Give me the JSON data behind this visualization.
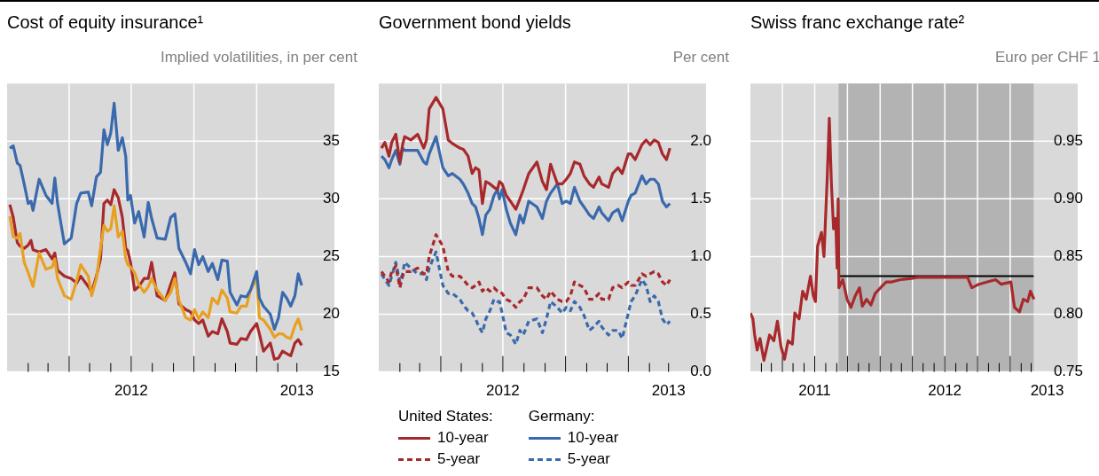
{
  "chart_data": [
    {
      "type": "line",
      "title": "Cost of equity insurance¹",
      "subtitle": "Implied volatilities, in per cent",
      "marker": "none",
      "grid": true,
      "xlim": [
        "2012-01-01",
        "2013-04-25"
      ],
      "xticks": [
        {
          "value": "2012-02-01",
          "label": null
        },
        {
          "value": "2012-03-01",
          "label": null
        },
        {
          "value": "2012-04-01",
          "label": null
        },
        {
          "value": "2012-05-01",
          "label": null
        },
        {
          "value": "2012-06-01",
          "label": null
        },
        {
          "value": "2012-07-01",
          "label": "2012"
        },
        {
          "value": "2012-08-01",
          "label": null
        },
        {
          "value": "2012-09-01",
          "label": null
        },
        {
          "value": "2012-10-01",
          "label": null
        },
        {
          "value": "2012-11-01",
          "label": null
        },
        {
          "value": "2012-12-01",
          "label": null
        },
        {
          "value": "2013-01-01",
          "label": null
        },
        {
          "value": "2013-02-01",
          "label": null
        },
        {
          "value": "2013-03-01",
          "label": "2013"
        }
      ],
      "ylim": [
        15,
        40
      ],
      "yticks": [
        15,
        20,
        25,
        30,
        35
      ],
      "x": [
        "2012-01-05",
        "2012-01-10",
        "2012-01-16",
        "2012-01-20",
        "2012-01-26",
        "2012-02-01",
        "2012-02-05",
        "2012-02-08",
        "2012-02-17",
        "2012-02-27",
        "2012-03-07",
        "2012-03-11",
        "2012-03-15",
        "2012-03-25",
        "2012-04-04",
        "2012-04-12",
        "2012-04-18",
        "2012-04-29",
        "2012-05-04",
        "2012-05-11",
        "2012-05-17",
        "2012-05-22",
        "2012-05-27",
        "2012-06-01",
        "2012-06-06",
        "2012-06-12",
        "2012-06-18",
        "2012-06-23",
        "2012-06-26",
        "2012-06-30",
        "2012-07-06",
        "2012-07-12",
        "2012-07-20",
        "2012-07-26",
        "2012-07-31",
        "2012-08-08",
        "2012-08-20",
        "2012-08-28",
        "2012-09-03",
        "2012-09-09",
        "2012-09-19",
        "2012-09-26",
        "2012-10-02",
        "2012-10-08",
        "2012-10-14",
        "2012-10-22",
        "2012-10-28",
        "2012-11-05",
        "2012-11-11",
        "2012-11-19",
        "2012-11-23",
        "2012-12-03",
        "2012-12-09",
        "2012-12-17",
        "2012-12-23",
        "2013-01-01",
        "2013-01-05",
        "2013-01-11",
        "2013-01-21",
        "2013-01-27",
        "2013-02-02",
        "2013-02-08",
        "2013-02-14",
        "2013-02-20",
        "2013-02-26",
        "2013-03-03",
        "2013-03-08"
      ],
      "series": [
        {
          "color": "#3a6aad",
          "values": [
            34.4,
            34.6,
            33.1,
            32.9,
            31.3,
            29.6,
            29.8,
            29.0,
            31.7,
            30.3,
            29.6,
            31.8,
            29.6,
            26.1,
            26.6,
            29.6,
            30.5,
            30.6,
            29.4,
            31.9,
            32.3,
            36.0,
            34.7,
            35.7,
            38.3,
            34.2,
            35.3,
            33.7,
            29.9,
            30.3,
            27.9,
            28.9,
            26.7,
            29.7,
            28.3,
            26.6,
            26.5,
            28.4,
            28.7,
            25.7,
            24.5,
            23.5,
            25.6,
            24.3,
            25.0,
            23.7,
            24.4,
            23.0,
            24.7,
            24.6,
            21.9,
            20.8,
            21.6,
            21.5,
            22.1,
            23.7,
            21.4,
            20.7,
            20.0,
            18.7,
            19.7,
            21.9,
            21.4,
            20.7,
            21.6,
            23.5,
            22.5
          ]
        },
        {
          "color": "#e8a021",
          "values": [
            28.5,
            26.7,
            26.6,
            27.0,
            24.5,
            23.6,
            22.9,
            22.4,
            25.3,
            23.9,
            24.1,
            24.8,
            23.1,
            21.6,
            21.3,
            22.9,
            24.3,
            23.3,
            21.6,
            23.1,
            25.7,
            27.7,
            27.2,
            27.4,
            29.4,
            26.7,
            27.2,
            24.8,
            24.3,
            24.1,
            23.6,
            22.6,
            21.9,
            22.4,
            23.1,
            22.1,
            21.2,
            21.9,
            23.1,
            21.2,
            19.7,
            19.5,
            20.4,
            19.6,
            20.2,
            19.7,
            21.4,
            20.9,
            22.1,
            21.4,
            20.2,
            20.1,
            20.7,
            20.7,
            22.1,
            23.1,
            19.7,
            19.5,
            18.7,
            18.0,
            18.3,
            18.3,
            18.0,
            17.9,
            19.0,
            19.6,
            18.6
          ]
        },
        {
          "color": "#a8292c",
          "values": [
            29.5,
            28.4,
            26.2,
            25.9,
            25.7,
            26.0,
            26.4,
            25.6,
            25.4,
            25.6,
            24.8,
            25.3,
            23.8,
            23.3,
            23.1,
            22.7,
            23.3,
            22.4,
            21.9,
            23.3,
            24.8,
            29.6,
            29.9,
            29.5,
            30.8,
            30.1,
            28.4,
            25.7,
            25.5,
            24.5,
            22.1,
            22.4,
            23.1,
            23.1,
            24.5,
            21.6,
            21.2,
            22.6,
            23.6,
            20.9,
            20.4,
            20.2,
            19.5,
            19.2,
            19.5,
            18.1,
            18.5,
            18.3,
            19.6,
            18.5,
            17.5,
            17.4,
            17.9,
            17.8,
            18.5,
            19.2,
            18.3,
            16.8,
            17.5,
            16.1,
            16.2,
            16.8,
            16.6,
            16.4,
            17.5,
            17.8,
            17.3
          ]
        }
      ]
    },
    {
      "type": "line",
      "title": "Government bond yields",
      "subtitle": "Per cent",
      "marker": "none",
      "grid": true,
      "legend": "bottom",
      "annotations": [
        "United States:",
        "Germany:"
      ],
      "xlim": [
        "2012-01-01",
        "2013-04-25"
      ],
      "xticks": [
        {
          "value": "2012-02-01",
          "label": null
        },
        {
          "value": "2012-03-01",
          "label": null
        },
        {
          "value": "2012-04-01",
          "label": null
        },
        {
          "value": "2012-05-01",
          "label": null
        },
        {
          "value": "2012-06-01",
          "label": null
        },
        {
          "value": "2012-07-01",
          "label": "2012"
        },
        {
          "value": "2012-08-01",
          "label": null
        },
        {
          "value": "2012-09-01",
          "label": null
        },
        {
          "value": "2012-10-01",
          "label": null
        },
        {
          "value": "2012-11-01",
          "label": null
        },
        {
          "value": "2012-12-01",
          "label": null
        },
        {
          "value": "2013-01-01",
          "label": null
        },
        {
          "value": "2013-02-01",
          "label": null
        },
        {
          "value": "2013-03-01",
          "label": "2013"
        }
      ],
      "ylim": [
        0,
        2.5
      ],
      "yticks": [
        {
          "value": 0,
          "label": "0.0"
        },
        {
          "value": 0.5,
          "label": "0.5"
        },
        {
          "value": 1,
          "label": "1.0"
        },
        {
          "value": 1.5,
          "label": "1.5"
        },
        {
          "value": 2,
          "label": "2.0"
        }
      ],
      "x": [
        "2012-01-05",
        "2012-01-10",
        "2012-01-16",
        "2012-01-20",
        "2012-01-26",
        "2012-02-01",
        "2012-02-05",
        "2012-02-08",
        "2012-02-17",
        "2012-02-27",
        "2012-03-07",
        "2012-03-11",
        "2012-03-15",
        "2012-03-25",
        "2012-04-04",
        "2012-04-12",
        "2012-04-18",
        "2012-04-29",
        "2012-05-04",
        "2012-05-11",
        "2012-05-17",
        "2012-05-22",
        "2012-05-27",
        "2012-06-01",
        "2012-06-06",
        "2012-06-12",
        "2012-06-18",
        "2012-06-23",
        "2012-06-26",
        "2012-06-30",
        "2012-07-06",
        "2012-07-12",
        "2012-07-20",
        "2012-07-26",
        "2012-07-31",
        "2012-08-08",
        "2012-08-20",
        "2012-08-28",
        "2012-09-03",
        "2012-09-09",
        "2012-09-19",
        "2012-09-26",
        "2012-10-02",
        "2012-10-08",
        "2012-10-14",
        "2012-10-22",
        "2012-10-28",
        "2012-11-05",
        "2012-11-11",
        "2012-11-19",
        "2012-11-23",
        "2012-12-03",
        "2012-12-09",
        "2012-12-17",
        "2012-12-23",
        "2013-01-01",
        "2013-01-05",
        "2013-01-11",
        "2013-01-21",
        "2013-01-27",
        "2013-02-02",
        "2013-02-08",
        "2013-02-14",
        "2013-02-20",
        "2013-02-26",
        "2013-03-03"
      ],
      "series": [
        {
          "name": "10-year",
          "color": "#a8292c",
          "line_style": "solid",
          "values": [
            1.94,
            1.99,
            1.87,
            1.99,
            2.06,
            1.82,
            1.97,
            2.04,
            2.01,
            2.06,
            1.94,
            2.01,
            2.28,
            2.38,
            2.28,
            2.01,
            1.98,
            1.94,
            1.93,
            1.87,
            1.72,
            1.77,
            1.75,
            1.46,
            1.65,
            1.63,
            1.6,
            1.58,
            1.65,
            1.63,
            1.53,
            1.48,
            1.41,
            1.5,
            1.58,
            1.72,
            1.82,
            1.65,
            1.58,
            1.8,
            1.63,
            1.63,
            1.67,
            1.72,
            1.82,
            1.8,
            1.7,
            1.63,
            1.6,
            1.69,
            1.63,
            1.6,
            1.72,
            1.77,
            1.72,
            1.89,
            1.89,
            1.84,
            1.97,
            2.01,
            1.97,
            2.01,
            1.99,
            1.89,
            1.84,
            1.94
          ]
        },
        {
          "name": "5-year",
          "color": "#a8292c",
          "line_style": "dashed",
          "values": [
            0.87,
            0.83,
            0.78,
            0.87,
            0.92,
            0.73,
            0.83,
            0.87,
            0.87,
            0.9,
            0.85,
            0.85,
            1.0,
            1.19,
            1.09,
            0.87,
            0.83,
            0.83,
            0.8,
            0.75,
            0.73,
            0.75,
            0.78,
            0.7,
            0.73,
            0.7,
            0.73,
            0.7,
            0.7,
            0.68,
            0.63,
            0.61,
            0.56,
            0.61,
            0.63,
            0.73,
            0.73,
            0.66,
            0.63,
            0.7,
            0.63,
            0.61,
            0.61,
            0.66,
            0.78,
            0.75,
            0.73,
            0.63,
            0.63,
            0.68,
            0.63,
            0.63,
            0.73,
            0.75,
            0.73,
            0.78,
            0.75,
            0.75,
            0.85,
            0.83,
            0.85,
            0.87,
            0.85,
            0.78,
            0.75,
            0.8
          ]
        },
        {
          "name": "10-year",
          "color": "#3a6aad",
          "line_style": "solid",
          "values": [
            1.87,
            1.84,
            1.77,
            1.84,
            1.92,
            1.8,
            1.94,
            1.92,
            1.92,
            1.92,
            1.82,
            1.8,
            1.89,
            2.04,
            1.77,
            1.7,
            1.72,
            1.67,
            1.63,
            1.55,
            1.46,
            1.43,
            1.33,
            1.19,
            1.36,
            1.41,
            1.53,
            1.58,
            1.5,
            1.58,
            1.41,
            1.29,
            1.19,
            1.36,
            1.29,
            1.48,
            1.43,
            1.33,
            1.48,
            1.55,
            1.63,
            1.46,
            1.48,
            1.46,
            1.6,
            1.48,
            1.43,
            1.36,
            1.33,
            1.43,
            1.38,
            1.31,
            1.38,
            1.41,
            1.31,
            1.48,
            1.53,
            1.55,
            1.7,
            1.63,
            1.67,
            1.67,
            1.63,
            1.48,
            1.43,
            1.46
          ]
        },
        {
          "name": "5-year",
          "color": "#3a6aad",
          "line_style": "dashed",
          "values": [
            0.85,
            0.8,
            0.75,
            0.83,
            0.95,
            0.78,
            0.85,
            0.95,
            0.9,
            0.85,
            0.85,
            0.8,
            0.9,
            1.04,
            0.75,
            0.68,
            0.68,
            0.63,
            0.58,
            0.53,
            0.51,
            0.46,
            0.39,
            0.34,
            0.46,
            0.53,
            0.63,
            0.61,
            0.61,
            0.51,
            0.34,
            0.32,
            0.24,
            0.36,
            0.32,
            0.44,
            0.46,
            0.34,
            0.46,
            0.61,
            0.56,
            0.51,
            0.56,
            0.53,
            0.61,
            0.56,
            0.49,
            0.36,
            0.39,
            0.44,
            0.39,
            0.32,
            0.36,
            0.36,
            0.29,
            0.51,
            0.61,
            0.66,
            0.8,
            0.75,
            0.61,
            0.66,
            0.61,
            0.46,
            0.41,
            0.44
          ]
        }
      ]
    },
    {
      "type": "line",
      "title": "Swiss franc exchange rate²",
      "subtitle": "Euro per CHF 1",
      "marker": "none",
      "grid": true,
      "xlim": [
        "2011-01-01",
        "2013-07-10"
      ],
      "xticks": [
        {
          "value": "2011-02-01",
          "label": null
        },
        {
          "value": "2011-03-01",
          "label": null
        },
        {
          "value": "2011-04-01",
          "label": null
        },
        {
          "value": "2011-05-01",
          "label": null
        },
        {
          "value": "2011-06-01",
          "label": null
        },
        {
          "value": "2011-07-01",
          "label": "2011"
        },
        {
          "value": "2011-08-01",
          "label": null
        },
        {
          "value": "2011-09-01",
          "label": null
        },
        {
          "value": "2011-10-01",
          "label": null
        },
        {
          "value": "2011-11-01",
          "label": null
        },
        {
          "value": "2011-12-01",
          "label": null
        },
        {
          "value": "2012-01-01",
          "label": null
        },
        {
          "value": "2012-02-01",
          "label": null
        },
        {
          "value": "2012-03-01",
          "label": null
        },
        {
          "value": "2012-04-01",
          "label": null
        },
        {
          "value": "2012-05-01",
          "label": null
        },
        {
          "value": "2012-06-01",
          "label": null
        },
        {
          "value": "2012-07-01",
          "label": "2012"
        },
        {
          "value": "2012-08-01",
          "label": null
        },
        {
          "value": "2012-09-01",
          "label": null
        },
        {
          "value": "2012-10-01",
          "label": null
        },
        {
          "value": "2012-11-01",
          "label": null
        },
        {
          "value": "2012-12-01",
          "label": null
        },
        {
          "value": "2013-01-01",
          "label": null
        },
        {
          "value": "2013-02-01",
          "label": null
        },
        {
          "value": "2013-03-01",
          "label": null
        },
        {
          "value": "2013-04-15",
          "label": "2013"
        }
      ],
      "ylim": [
        0.75,
        1.0
      ],
      "yticks": [
        {
          "value": 0.75,
          "label": "0.75"
        },
        {
          "value": 0.8,
          "label": "0.80"
        },
        {
          "value": 0.85,
          "label": "0.85"
        },
        {
          "value": 0.9,
          "label": "0.90"
        },
        {
          "value": 0.95,
          "label": "0.95"
        }
      ],
      "bands": [
        {
          "axis": "x",
          "from": "2011-09-06",
          "to": "2013-03-08",
          "color": "#b3b3b3"
        }
      ],
      "x": [
        "2011-01-01",
        "2011-01-08",
        "2011-01-13",
        "2011-01-20",
        "2011-01-28",
        "2011-02-08",
        "2011-02-24",
        "2011-03-08",
        "2011-03-18",
        "2011-03-28",
        "2011-04-07",
        "2011-04-17",
        "2011-04-29",
        "2011-05-06",
        "2011-05-18",
        "2011-05-28",
        "2011-06-07",
        "2011-06-19",
        "2011-06-27",
        "2011-07-03",
        "2011-07-09",
        "2011-07-20",
        "2011-07-27",
        "2011-08-05",
        "2011-08-11",
        "2011-08-17",
        "2011-08-23",
        "2011-08-29",
        "2011-09-02",
        "2011-09-05",
        "2011-09-07",
        "2011-09-18",
        "2011-09-30",
        "2011-10-11",
        "2011-10-23",
        "2011-11-04",
        "2011-11-12",
        "2011-11-24",
        "2011-12-06",
        "2011-12-18",
        "2012-01-02",
        "2012-01-18",
        "2012-02-03",
        "2012-02-27",
        "2012-03-29",
        "2012-04-14",
        "2012-06-16",
        "2012-09-03",
        "2012-09-15",
        "2012-10-05",
        "2012-10-29",
        "2012-11-21",
        "2012-12-07",
        "2013-01-03",
        "2013-01-13",
        "2013-01-27",
        "2013-02-07",
        "2013-02-19",
        "2013-02-27",
        "2013-03-09"
      ],
      "series": [
        {
          "color": "#a8292c",
          "values": [
            0.801,
            0.796,
            0.782,
            0.769,
            0.779,
            0.76,
            0.782,
            0.777,
            0.794,
            0.772,
            0.761,
            0.777,
            0.774,
            0.801,
            0.796,
            0.82,
            0.813,
            0.833,
            0.816,
            0.811,
            0.859,
            0.871,
            0.85,
            0.917,
            0.97,
            0.913,
            0.874,
            0.883,
            0.84,
            0.9,
            0.823,
            0.83,
            0.813,
            0.806,
            0.816,
            0.823,
            0.807,
            0.813,
            0.808,
            0.818,
            0.823,
            0.828,
            0.828,
            0.83,
            0.831,
            0.832,
            0.832,
            0.832,
            0.823,
            0.826,
            0.828,
            0.83,
            0.826,
            0.828,
            0.806,
            0.802,
            0.813,
            0.811,
            0.82,
            0.813
          ]
        },
        {
          "type": "line",
          "color": "#000000",
          "x": [
            "2011-09-06",
            "2013-03-08"
          ],
          "values": [
            0.833,
            0.833
          ]
        }
      ]
    }
  ]
}
